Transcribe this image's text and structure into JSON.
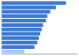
{
  "chart_data": {
    "type": "bar",
    "orientation": "horizontal",
    "categories": [
      null,
      null,
      null,
      null,
      null,
      null,
      null,
      null,
      null,
      null,
      null,
      null
    ],
    "values": [
      22.5,
      19.0,
      17.0,
      16.0,
      15.5,
      14.5,
      14.0,
      13.5,
      13.0,
      12.5,
      11.5,
      8.0
    ],
    "colors": [
      "#3878d0",
      "#3878d0",
      "#3878d0",
      "#3878d0",
      "#3878d0",
      "#3878d0",
      "#3878d0",
      "#3878d0",
      "#3878d0",
      "#3878d0",
      "#3878d0",
      "#a8c8f0"
    ],
    "xlim": [
      0,
      26.5
    ],
    "tick_labels": false
  }
}
